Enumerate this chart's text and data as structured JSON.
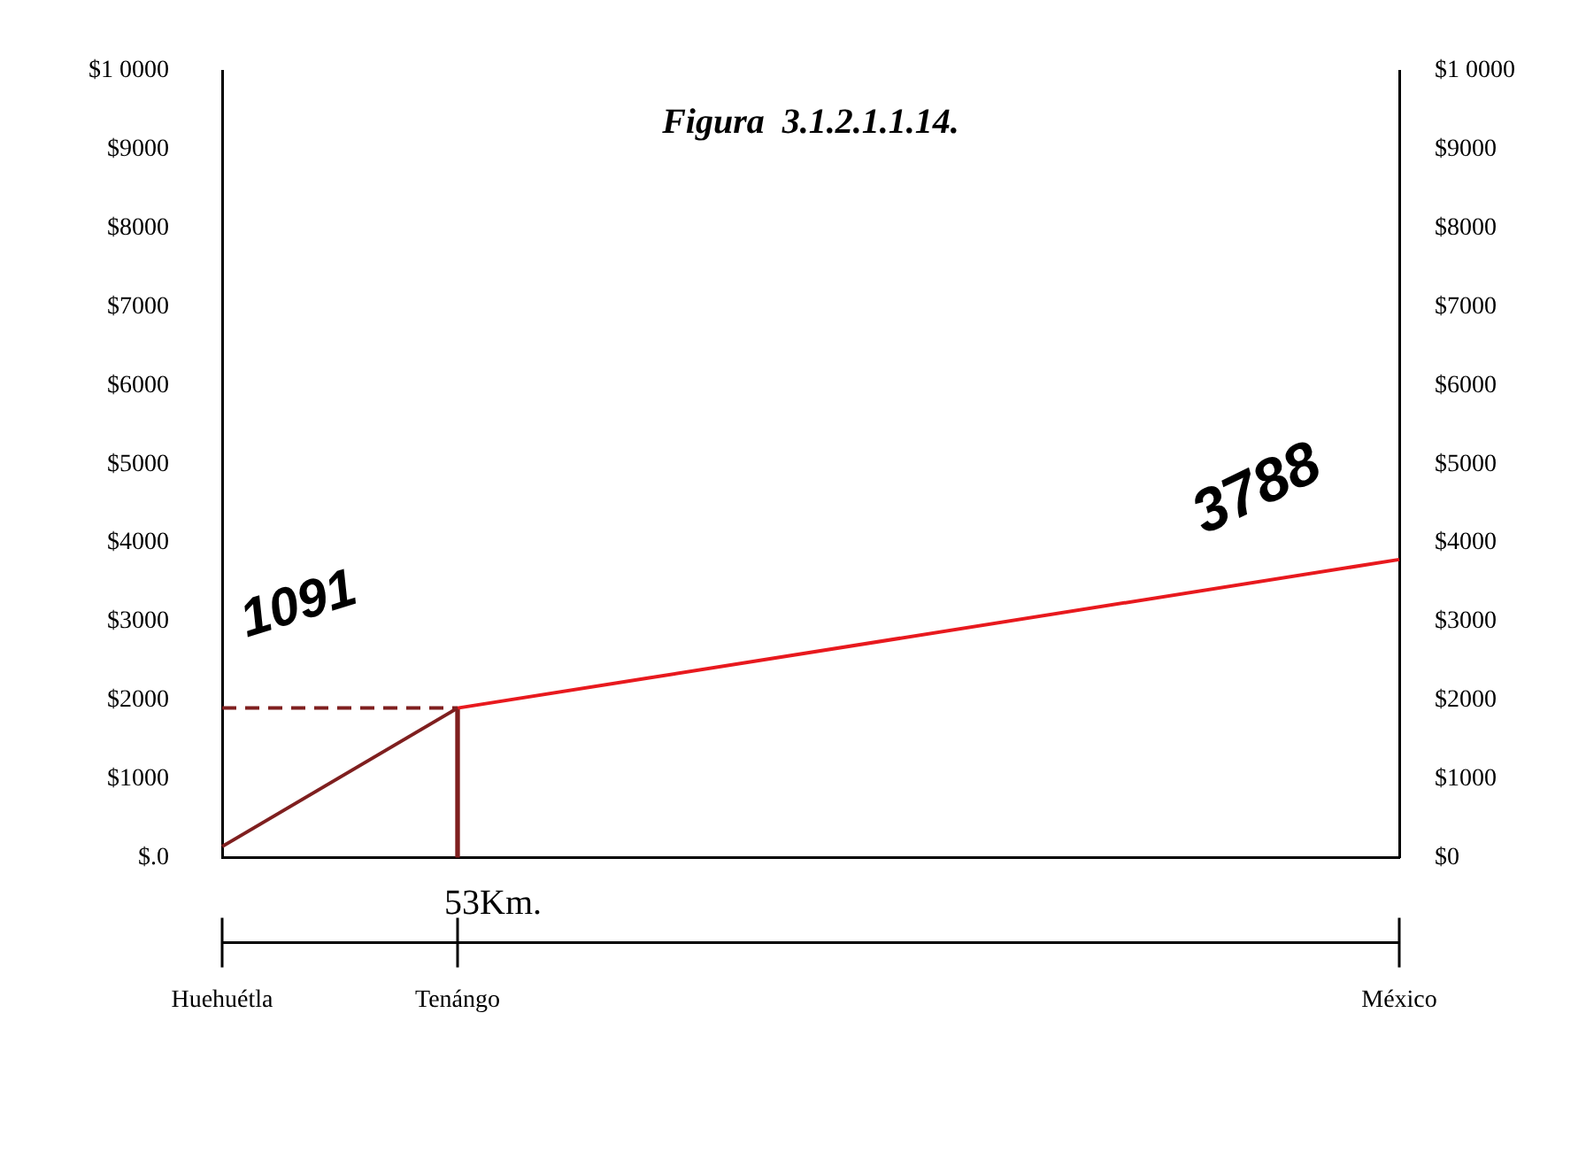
{
  "chart_data": {
    "type": "line",
    "title": "Figura  3.1.2.1.1.14.",
    "categories": [
      "Huehuétla",
      "Tenángo",
      null,
      null,
      null,
      "México"
    ],
    "ylim": [
      0,
      10000
    ],
    "yticks": [
      {
        "value": 0,
        "label": "$.0"
      },
      {
        "value": 1000,
        "label": "$1000"
      },
      {
        "value": 2000,
        "label": "$2000"
      },
      {
        "value": 3000,
        "label": "$3000"
      },
      {
        "value": 4000,
        "label": "$4000"
      },
      {
        "value": 5000,
        "label": "$5000"
      },
      {
        "value": 6000,
        "label": "$6000"
      },
      {
        "value": 7000,
        "label": "$7000"
      },
      {
        "value": 8000,
        "label": "$8000"
      },
      {
        "value": 9000,
        "label": "$9000"
      },
      {
        "value": 10000,
        "label": "$1 0000"
      }
    ],
    "y2lim": [
      0,
      10000
    ],
    "y2ticks": [
      {
        "value": 0,
        "label": "$0"
      },
      {
        "value": 1000,
        "label": "$1000"
      },
      {
        "value": 2000,
        "label": "$2000"
      },
      {
        "value": 3000,
        "label": "$3000"
      },
      {
        "value": 4000,
        "label": "$4000"
      },
      {
        "value": 5000,
        "label": "$5000"
      },
      {
        "value": 6000,
        "label": "$6000"
      },
      {
        "value": 7000,
        "label": "$7000"
      },
      {
        "value": 8000,
        "label": "$8000"
      },
      {
        "value": 9000,
        "label": "$9000"
      },
      {
        "value": 10000,
        "label": "$1 0000"
      }
    ],
    "series": [
      {
        "color": "#7f1f1f",
        "values": [
          140,
          1900,
          null,
          null,
          null,
          null
        ]
      },
      {
        "color": "#e8191e",
        "values": [
          null,
          1900,
          null,
          null,
          null,
          3788
        ],
        "value_labels": [
          null,
          null,
          null,
          null,
          null,
          "3788"
        ]
      },
      {
        "color": "#7f1f1f",
        "values": [
          1900,
          1900,
          null,
          null,
          null,
          null
        ],
        "line_style": "dashed"
      },
      {
        "type": "bar",
        "color": "#7f1f1f",
        "values": [
          null,
          1900,
          null,
          null,
          null,
          null
        ]
      }
    ],
    "annotations": [
      "1091",
      {
        "text": "53Km.",
        "x": "Tenángo",
        "y": 0
      }
    ],
    "marker": "none",
    "grid": false,
    "legend": false
  }
}
